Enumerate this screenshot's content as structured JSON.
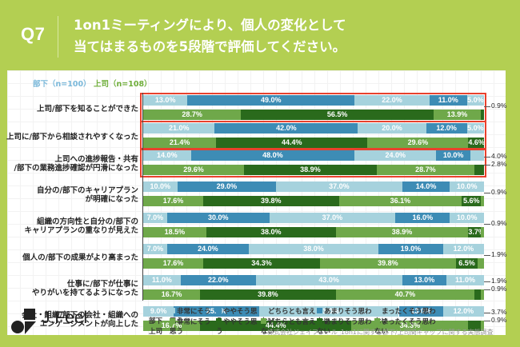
{
  "header": {
    "question_number": "Q7",
    "title_line1": "1on1ミーティングにより、個人の変化として",
    "title_line2": "当てはまるものを5段階で評価してください。"
  },
  "legend_top": {
    "subordinate": "部下（n=100）",
    "boss": "上司（n=108）"
  },
  "brand": {
    "name": "J.Feel"
  },
  "source": "株式会社ジェイフィール_1on1に関する部下/上司間ギャップに関する実態調査",
  "colors": {
    "background": "#b3cf52",
    "sub_light": "#a6d2dd",
    "sub_dark": "#3d8cb5",
    "boss_light": "#6fa84a",
    "boss_dark": "#2a6a1c",
    "highlight": "#e8412d"
  },
  "legend": {
    "sub_label": "部下",
    "boss_label": "上司",
    "categories": [
      "非常にそう思う",
      "ややそう思う",
      "どちらとも言えない",
      "あまりそう思わない",
      "まったくそう思わない"
    ]
  },
  "chart_data": {
    "type": "bar",
    "orientation": "horizontal-stacked-100",
    "title": "1on1ミーティングにより、個人の変化として当てはまるものを5段階で評価してください。",
    "xlabel": "",
    "ylabel": "",
    "xlim": [
      0,
      100
    ],
    "legend_position": "bottom",
    "categories_stack": [
      "非常にそう思う",
      "ややそう思う",
      "どちらとも言えない",
      "あまりそう思わない",
      "まったくそう思わない"
    ],
    "series_groups": [
      "部下",
      "上司"
    ],
    "rows": [
      {
        "label_lines": [
          "上司/部下を知ることができた"
        ],
        "highlight": true,
        "sub": [
          13.0,
          49.0,
          22.0,
          11.0,
          5.0
        ],
        "boss": [
          28.7,
          56.5,
          13.9,
          0.9,
          0.0
        ],
        "sub_labels": [
          "13.0%",
          "49.0%",
          "22.0%",
          "11.0%",
          "5.0%"
        ],
        "boss_labels": [
          "28.7%",
          "56.5%",
          "13.9%",
          "",
          ""
        ],
        "side_notes": [
          "0.9%"
        ]
      },
      {
        "label_lines": [
          "上司に/部下から相談されやすくなった"
        ],
        "highlight": true,
        "sub": [
          21.0,
          42.0,
          20.0,
          12.0,
          5.0
        ],
        "boss": [
          21.4,
          44.4,
          29.6,
          4.6,
          0.0
        ],
        "sub_labels": [
          "21.0%",
          "42.0%",
          "20.0%",
          "12.0%",
          "5.0%"
        ],
        "boss_labels": [
          "21.4%",
          "44.4%",
          "29.6%",
          "4.6%",
          ""
        ],
        "side_notes": []
      },
      {
        "label_lines": [
          "上司への進捗報告・共有",
          "/部下の業務進捗確認が円滑になった"
        ],
        "highlight": true,
        "sub": [
          14.0,
          48.0,
          24.0,
          10.0,
          4.0
        ],
        "boss": [
          29.6,
          38.9,
          28.7,
          2.8,
          0.0
        ],
        "sub_labels": [
          "14.0%",
          "48.0%",
          "24.0%",
          "10.0%",
          ""
        ],
        "boss_labels": [
          "29.6%",
          "38.9%",
          "28.7%",
          "",
          ""
        ],
        "side_notes": [
          "4.0%",
          "2.8%"
        ]
      },
      {
        "label_lines": [
          "自分の/部下のキャリアプラン",
          "が明確になった"
        ],
        "highlight": false,
        "sub": [
          10.0,
          29.0,
          37.0,
          14.0,
          10.0
        ],
        "boss": [
          17.6,
          39.8,
          36.1,
          5.6,
          0.9
        ],
        "sub_labels": [
          "10.0%",
          "29.0%",
          "37.0%",
          "14.0%",
          "10.0%"
        ],
        "boss_labels": [
          "17.6%",
          "39.8%",
          "36.1%",
          "5.6%",
          ""
        ],
        "side_notes": [
          "0.9%"
        ]
      },
      {
        "label_lines": [
          "組織の方向性と自分の/部下の",
          "キャリアプランの重なりが見えた"
        ],
        "highlight": false,
        "sub": [
          7.0,
          30.0,
          37.0,
          16.0,
          10.0
        ],
        "boss": [
          18.5,
          38.0,
          38.9,
          3.7,
          0.9
        ],
        "sub_labels": [
          "7.0%",
          "30.0%",
          "37.0%",
          "16.0%",
          "10.0%"
        ],
        "boss_labels": [
          "18.5%",
          "38.0%",
          "38.9%",
          "3.7%",
          ""
        ],
        "side_notes": [
          "0.9%"
        ]
      },
      {
        "label_lines": [
          "個人の/部下の成果がより高まった"
        ],
        "highlight": false,
        "sub": [
          7.0,
          24.0,
          38.0,
          19.0,
          12.0
        ],
        "boss": [
          17.6,
          34.3,
          39.8,
          6.5,
          1.9
        ],
        "sub_labels": [
          "7.0%",
          "24.0%",
          "38.0%",
          "19.0%",
          "12.0%"
        ],
        "boss_labels": [
          "17.6%",
          "34.3%",
          "39.8%",
          "6.5%",
          ""
        ],
        "side_notes": [
          "1.9%"
        ]
      },
      {
        "label_lines": [
          "仕事に/部下が仕事に",
          "やりがいを持てるようになった"
        ],
        "highlight": false,
        "sub": [
          11.0,
          22.0,
          43.0,
          13.0,
          11.0
        ],
        "boss": [
          16.7,
          39.8,
          40.7,
          1.9,
          0.9
        ],
        "sub_labels": [
          "11.0%",
          "22.0%",
          "43.0%",
          "13.0%",
          "11.0%"
        ],
        "boss_labels": [
          "16.7%",
          "39.8%",
          "40.7%",
          "",
          ""
        ],
        "side_notes": [
          "1.9%",
          "0.9%"
        ]
      },
      {
        "label_lines": [
          "会社・組織/部下の会社・組織への",
          "エンゲージメントが向上した"
        ],
        "highlight": false,
        "sub": [
          9.0,
          25.0,
          41.0,
          13.0,
          12.0
        ],
        "boss": [
          16.7,
          44.4,
          34.3,
          3.7,
          0.9
        ],
        "sub_labels": [
          "9.0%",
          "25.0%",
          "41.0%",
          "13.0%",
          "12.0%"
        ],
        "boss_labels": [
          "16.7%",
          "44.4%",
          "34.3%",
          "",
          ""
        ],
        "side_notes": [
          "3.7%",
          "0.9%"
        ]
      }
    ]
  }
}
